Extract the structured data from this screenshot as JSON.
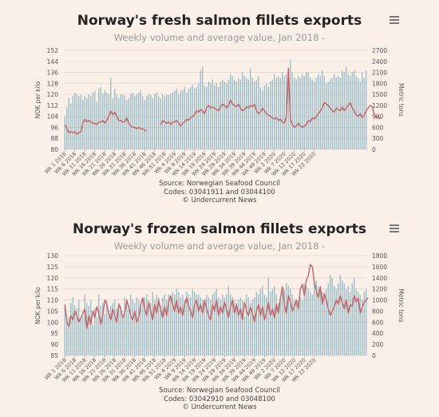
{
  "charts": [
    {
      "title": "Norway's fresh salmon fillets exports",
      "subtitle": "Weekly volume and average value, Jan 2018 -",
      "credits": [
        "Source: Norwegian Seafood Council",
        "Codes: 03041911 and 03044100",
        "© Undercurrent News"
      ]
    },
    {
      "title": "Norway's frozen salmon fillets exports",
      "subtitle": "Weekly volume and average value, Jan 2018 -",
      "credits": [
        "Source: Norwegian Seafood Council",
        "Codes: 03042910 and 03048100",
        "© Undercurrent News"
      ]
    }
  ],
  "colors": {
    "bar": "#8fb8c6",
    "line": "#c8595c",
    "grid": "#e6d6cc",
    "text": "#555555"
  },
  "chart_data": [
    {
      "type": "bar+line",
      "title": "Norway's fresh salmon fillets exports",
      "subtitle": "Weekly volume and average value, Jan 2018 -",
      "ylabel_left": "NOK per kilo",
      "ylabel_right": "Metric tons",
      "ylim_left": [
        80,
        152
      ],
      "yticks_left": [
        80,
        88,
        96,
        104,
        112,
        120,
        128,
        136,
        144,
        152
      ],
      "ylim_right": [
        0,
        2700
      ],
      "yticks_right": [
        0,
        300,
        600,
        900,
        1200,
        1500,
        1800,
        2100,
        2400,
        2700
      ],
      "grid": true,
      "xtick_labels": [
        "Wk 1 2018",
        "Wk 6 2018",
        "Wk 11 2018",
        "Wk 16 2018",
        "Wk 21 2018",
        "Wk 26 2018",
        "Wk 31 2018",
        "Wk 36 2018",
        "Wk 41 2018",
        "Wk 46 2018",
        "Wk 51 2018",
        "Wk 4 2019",
        "Wk 9 2019",
        "Wk 14 2019",
        "Wk 19 2019",
        "Wk 24 2019",
        "Wk 29 2019",
        "Wk 34 2019",
        "Wk 39 2019",
        "Wk 44 2019",
        "Wk 49 2019",
        "Wk 2 2020",
        "Wk 7 2020",
        "Wk 12 2020",
        "Wk 17 2020",
        "Wk 22 2020"
      ],
      "series": [
        {
          "name": "Metric tons",
          "kind": "bar",
          "axis": "right",
          "values": [
            900,
            1150,
            1400,
            1250,
            1450,
            1550,
            1500,
            1450,
            1480,
            1350,
            1450,
            1400,
            1500,
            1450,
            1550,
            1600,
            1300,
            1650,
            1700,
            1520,
            1600,
            1550,
            1500,
            1950,
            1400,
            1650,
            1500,
            1400,
            1500,
            1500,
            1450,
            1350,
            1400,
            1500,
            1550,
            1450,
            1500,
            1550,
            1600,
            1450,
            1350,
            1450,
            1500,
            1480,
            1400,
            1500,
            1550,
            1450,
            1400,
            1500,
            1450,
            1500,
            1480,
            1520,
            1550,
            1600,
            1650,
            1500,
            1600,
            1620,
            1700,
            1550,
            1650,
            1700,
            1750,
            1650,
            1700,
            1800,
            2150,
            2250,
            1750,
            1700,
            1850,
            1800,
            1900,
            1750,
            1800,
            1700,
            1850,
            1900,
            1850,
            1800,
            1900,
            2050,
            2000,
            1900,
            1850,
            1950,
            1900,
            2100,
            2000,
            1950,
            1900,
            2200,
            1950,
            1850,
            1900,
            2000,
            1700,
            1600,
            1750,
            1800,
            1700,
            1850,
            1900,
            2050,
            1950,
            2000,
            1950,
            2100,
            2000,
            2050,
            2200,
            2450,
            2100,
            1950,
            1900,
            2000,
            1950,
            2050,
            2000,
            2100,
            2100,
            1950,
            1900,
            1850,
            1950,
            2050,
            2000,
            2150,
            2000,
            1800,
            1850,
            1900,
            1950,
            2050,
            1950,
            2000,
            1950,
            2150,
            2100,
            2250,
            2050,
            2000,
            2100,
            2150,
            2000,
            1950,
            1850,
            2100,
            1950,
            2150
          ]
        },
        {
          "name": "NOK per kilo",
          "kind": "line",
          "axis": "left",
          "values": [
            98,
            95,
            92,
            93,
            92,
            93,
            91,
            92,
            93,
            99,
            102,
            100,
            101,
            100,
            99,
            99,
            98,
            100,
            100,
            101,
            99,
            101,
            104,
            108,
            105,
            107,
            104,
            101,
            101,
            100,
            100,
            103,
            99,
            97,
            96,
            96,
            95,
            96,
            95,
            95,
            94,
            93,
            null,
            null,
            null,
            null,
            null,
            null,
            98,
            101,
            100,
            99,
            100,
            98,
            100,
            100,
            101,
            99,
            97,
            99,
            100,
            102,
            101,
            103,
            104,
            105,
            108,
            107,
            109,
            108,
            106,
            110,
            112,
            110,
            111,
            110,
            109,
            108,
            111,
            113,
            112,
            110,
            112,
            116,
            113,
            112,
            111,
            113,
            110,
            108,
            109,
            111,
            110,
            112,
            111,
            113,
            108,
            106,
            107,
            110,
            108,
            106,
            105,
            104,
            103,
            102,
            103,
            101,
            102,
            100,
            99,
            104,
            139,
            102,
            98,
            96,
            97,
            99,
            97,
            96,
            97,
            98,
            101,
            100,
            103,
            102,
            104,
            106,
            108,
            110,
            114,
            113,
            112,
            110,
            108,
            107,
            110,
            109,
            108,
            111,
            108,
            110,
            112,
            114,
            110,
            108,
            105,
            104,
            106,
            103,
            105,
            108,
            110,
            112,
            111,
            106,
            103,
            104,
            102
          ]
        }
      ]
    },
    {
      "type": "bar+line",
      "title": "Norway's frozen salmon fillets exports",
      "subtitle": "Weekly volume and average value, Jan 2018 -",
      "ylabel_left": "NOK per kilo",
      "ylabel_right": "Metric tons",
      "ylim_left": [
        85,
        130
      ],
      "yticks_left": [
        85,
        90,
        95,
        100,
        105,
        110,
        115,
        120,
        125,
        130
      ],
      "ylim_right": [
        0,
        1800
      ],
      "yticks_right": [
        0,
        200,
        400,
        600,
        800,
        1000,
        1200,
        1400,
        1600,
        1800
      ],
      "grid": true,
      "xtick_labels": [
        "Wk 1 2018",
        "Wk 6 2018",
        "Wk 11 2018",
        "Wk 16 2018",
        "Wk 21 2018",
        "Wk 26 2018",
        "Wk 31 2018",
        "Wk 36 2018",
        "Wk 41 2018",
        "Wk 46 2018",
        "Wk 51 2018",
        "Wk 4 2019",
        "Wk 9 2019",
        "Wk 14 2019",
        "Wk 19 2019",
        "Wk 24 2019",
        "Wk 29 2019",
        "Wk 34 2019",
        "Wk 39 2019",
        "Wk 44 2019",
        "Wk 49 2019",
        "Wk 2 2020",
        "Wk 7 2020",
        "Wk 12 2020",
        "Wk 17 2020",
        "Wk 22 2020"
      ],
      "series": [
        {
          "name": "Metric tons",
          "kind": "bar",
          "axis": "right",
          "values": [
            900,
            650,
            700,
            950,
            1050,
            900,
            850,
            1000,
            650,
            700,
            1100,
            950,
            900,
            1000,
            550,
            850,
            700,
            1100,
            900,
            950,
            750,
            1000,
            800,
            900,
            950,
            1000,
            850,
            950,
            900,
            700,
            1050,
            950,
            900,
            1100,
            1000,
            950,
            1050,
            1000,
            900,
            1000,
            1050,
            1100,
            1000,
            950,
            1150,
            1000,
            1100,
            1050,
            900,
            1050,
            1100,
            1000,
            1100,
            1050,
            1150,
            1100,
            1200,
            1150,
            1050,
            1100,
            1000,
            1150,
            1100,
            1050,
            1200,
            1150,
            1100,
            1100,
            1050,
            1000,
            950,
            1100,
            1050,
            1000,
            1100,
            1150,
            1200,
            1050,
            1000,
            1100,
            1050,
            1100,
            1250,
            1100,
            1050,
            1000,
            950,
            1000,
            1050,
            1000,
            700,
            1100,
            1050,
            950,
            1000,
            1050,
            1150,
            1100,
            1200,
            1250,
            1100,
            1050,
            1400,
            1150,
            1200,
            1250,
            1100,
            950,
            1050,
            1150,
            1200,
            1300,
            1250,
            1200,
            1100,
            1000,
            950,
            1000,
            1050,
            1000,
            1300,
            1250,
            1200,
            1150,
            1100,
            1300,
            1350,
            1250,
            1200,
            1150,
            1100,
            1200,
            1300,
            1450,
            1400,
            1250,
            1200,
            1300,
            1450,
            1350,
            1300,
            1200,
            1250,
            1150,
            1300,
            1400,
            1200,
            1150,
            1100,
            1000,
            1150,
            1200
          ]
        },
        {
          "name": "NOK per kilo",
          "kind": "line",
          "axis": "left",
          "values": [
            108,
            100,
            98,
            103,
            101,
            105,
            103,
            100,
            102,
            104,
            106,
            97,
            103,
            99,
            105,
            102,
            107,
            104,
            99,
            103,
            110,
            108,
            104,
            101,
            106,
            103,
            100,
            108,
            106,
            102,
            104,
            110,
            107,
            103,
            101,
            105,
            100,
            102,
            108,
            111,
            106,
            103,
            109,
            105,
            101,
            108,
            104,
            110,
            106,
            102,
            107,
            103,
            109,
            112,
            108,
            105,
            110,
            104,
            107,
            103,
            108,
            111,
            107,
            105,
            102,
            108,
            110,
            105,
            108,
            104,
            110,
            106,
            103,
            101,
            108,
            105,
            110,
            103,
            107,
            104,
            109,
            106,
            102,
            107,
            110,
            104,
            108,
            103,
            106,
            101,
            109,
            105,
            103,
            107,
            104,
            100,
            105,
            108,
            103,
            107,
            101,
            104,
            109,
            103,
            106,
            102,
            108,
            104,
            111,
            116,
            108,
            104,
            112,
            109,
            105,
            107,
            110,
            106,
            115,
            117,
            112,
            119,
            121,
            126,
            125,
            118,
            114,
            111,
            116,
            108,
            113,
            110,
            106,
            103,
            105,
            107,
            110,
            108,
            112,
            109,
            106,
            110,
            104,
            108,
            107,
            112,
            109,
            111,
            104,
            107,
            109,
            110,
            111
          ]
        }
      ]
    }
  ]
}
